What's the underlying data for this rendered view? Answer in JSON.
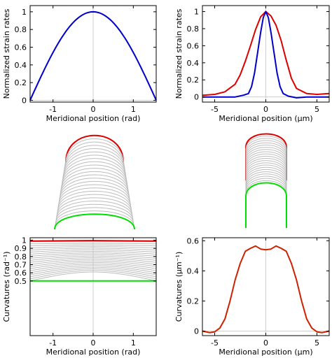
{
  "chart_data": [
    {
      "id": "top-left",
      "type": "line",
      "xlabel": "Meridional position (rad)",
      "ylabel": "Normalized strain rates",
      "xlim": [
        -1.57,
        1.57
      ],
      "ylim": [
        -0.02,
        1.07
      ],
      "xticks": [
        -1,
        0,
        1
      ],
      "yticks": [
        0,
        0.2,
        0.4,
        0.6,
        0.8,
        1
      ],
      "vline_x": 0,
      "hline_y": 0,
      "series": [
        {
          "color": "#0000cc",
          "x": [
            -1.57,
            -1.2,
            -0.9,
            -0.6,
            -0.3,
            0,
            0.3,
            0.6,
            0.9,
            1.2,
            1.57
          ],
          "y": [
            0.0,
            0.36,
            0.62,
            0.83,
            0.955,
            1.0,
            0.955,
            0.83,
            0.62,
            0.36,
            0.0
          ]
        }
      ]
    },
    {
      "id": "top-right",
      "type": "line",
      "xlabel": "Meridional position (µm)",
      "ylabel": "Normalized strain rates",
      "xlim": [
        -6.2,
        6.2
      ],
      "ylim": [
        -0.06,
        1.07
      ],
      "xticks": [
        -5,
        0,
        5
      ],
      "yticks": [
        0,
        0.2,
        0.4,
        0.6,
        0.8,
        1
      ],
      "vline_x": 0,
      "hline_y": 0,
      "series": [
        {
          "color": "#dd0000",
          "x": [
            -6.2,
            -5,
            -4,
            -3,
            -2.5,
            -2,
            -1.5,
            -1,
            -0.5,
            0,
            0.5,
            1,
            1.5,
            2,
            2.5,
            3,
            4,
            5,
            6.2
          ],
          "y": [
            0.02,
            0.03,
            0.06,
            0.15,
            0.26,
            0.42,
            0.6,
            0.79,
            0.94,
            1.0,
            0.95,
            0.84,
            0.66,
            0.43,
            0.22,
            0.1,
            0.04,
            0.03,
            0.04
          ]
        },
        {
          "color": "#0000cc",
          "x": [
            -6.2,
            -4,
            -3,
            -2.2,
            -1.7,
            -1.4,
            -1.1,
            -0.8,
            -0.5,
            -0.25,
            0,
            0.25,
            0.5,
            0.8,
            1.1,
            1.4,
            1.7,
            2.2,
            3,
            4,
            6.2
          ],
          "y": [
            0.0,
            0.0,
            0.0,
            0.02,
            0.04,
            0.12,
            0.28,
            0.52,
            0.76,
            0.93,
            1.0,
            0.93,
            0.76,
            0.52,
            0.28,
            0.12,
            0.04,
            0.01,
            -0.01,
            0.0,
            0.0
          ]
        }
      ]
    },
    {
      "id": "middle-left",
      "type": "line",
      "description_shape": "tip outlines, left geometry",
      "grey_color": "#bdbdbd",
      "top_color": "#dd0000",
      "bottom_color": "#00dd00"
    },
    {
      "id": "middle-right",
      "type": "line",
      "description_shape": "tip outlines, right geometry",
      "grey_color": "#bdbdbd",
      "top_color": "#dd0000",
      "bottom_color": "#00dd00"
    },
    {
      "id": "bottom-left",
      "type": "line",
      "xlabel": "Meridional position (rad)",
      "ylabel": "Curvatures (rad⁻¹)",
      "xlim": [
        -1.57,
        1.57
      ],
      "ylim": [
        -0.17,
        1.03
      ],
      "xticks": [
        -1,
        0,
        1
      ],
      "yticks": [
        0.5,
        0.6,
        0.7,
        0.8,
        0.9,
        1
      ],
      "vline_x": 0,
      "series": [
        {
          "color": "#dd0000",
          "x": [
            -1.57,
            0,
            1.57
          ],
          "y": [
            0.99,
            0.995,
            0.99
          ]
        },
        {
          "color": "#00dd00",
          "x": [
            -1.57,
            0,
            1.57
          ],
          "y": [
            0.5,
            0.5,
            0.5
          ]
        }
      ],
      "grey_series_count": 20
    },
    {
      "id": "bottom-right",
      "type": "line",
      "xlabel": "Meridional position (µm)",
      "ylabel": "Curvatures (µm⁻¹)",
      "xlim": [
        -6.2,
        6.2
      ],
      "ylim": [
        -0.03,
        0.62
      ],
      "xticks": [
        -5,
        0,
        5
      ],
      "yticks": [
        0,
        0.2,
        0.4,
        0.6
      ],
      "vline_x": 0,
      "hline_y": 0,
      "series": [
        {
          "color": "#cc2200",
          "x": [
            -6.2,
            -5.5,
            -5,
            -4.5,
            -4,
            -3.5,
            -3,
            -2.5,
            -2,
            -1.5,
            -1,
            -0.5,
            0,
            0.5,
            1,
            1.5,
            2,
            2.5,
            3,
            3.5,
            4,
            4.5,
            5,
            5.5,
            6.2
          ],
          "y": [
            0.0,
            -0.01,
            -0.005,
            0.02,
            0.08,
            0.2,
            0.34,
            0.45,
            0.53,
            0.55,
            0.565,
            0.545,
            0.54,
            0.545,
            0.565,
            0.55,
            0.53,
            0.45,
            0.34,
            0.2,
            0.08,
            0.02,
            -0.005,
            -0.01,
            0.0
          ]
        }
      ]
    }
  ]
}
